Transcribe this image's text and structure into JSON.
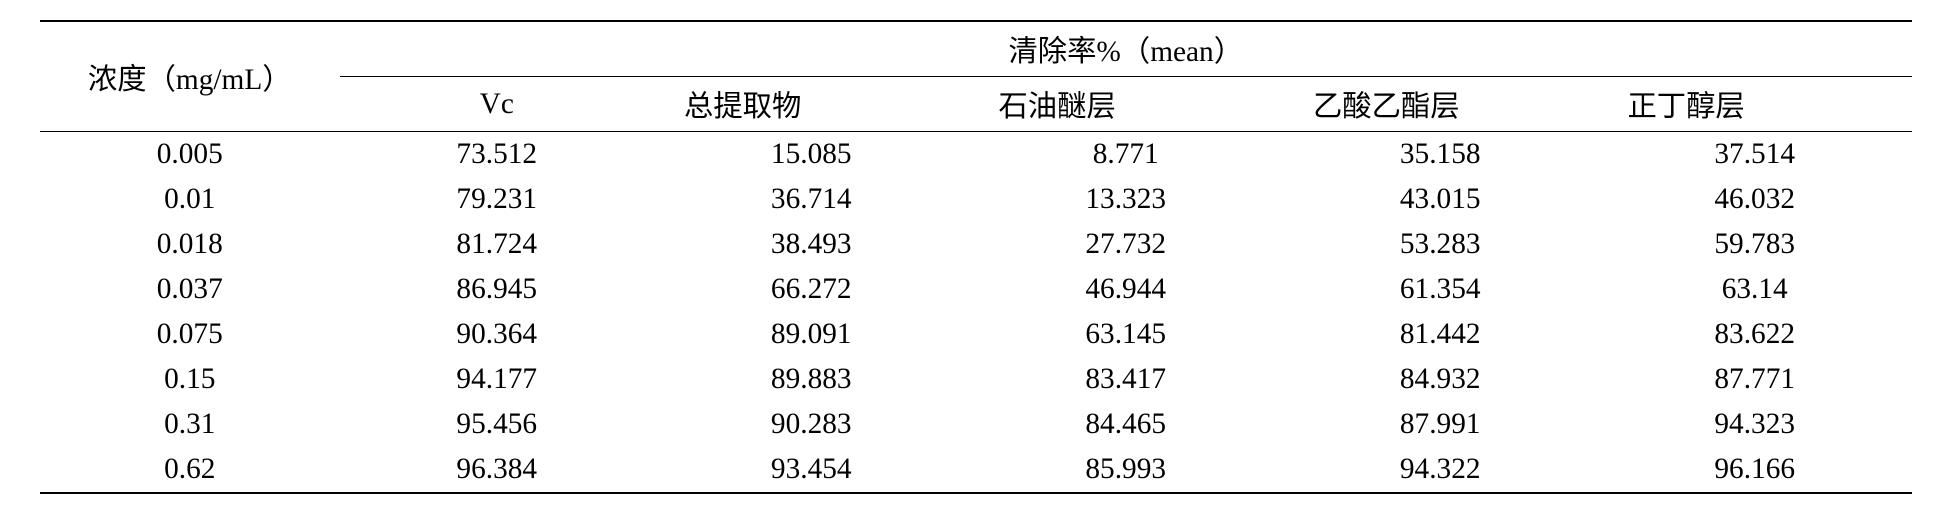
{
  "table": {
    "font_size_pt": 22,
    "text_color": "#000000",
    "background_color": "#ffffff",
    "border_color": "#000000",
    "header": {
      "row_label": "浓度（mg/mL）",
      "group_label": "清除率%（mean）",
      "sub_columns": [
        "Vc",
        "总提取物",
        "石油醚层",
        "乙酸乙酯层",
        "正丁醇层"
      ]
    },
    "rows": [
      [
        "0.005",
        "73.512",
        "15.085",
        "8.771",
        "35.158",
        "37.514"
      ],
      [
        "0.01",
        "79.231",
        "36.714",
        "13.323",
        "43.015",
        "46.032"
      ],
      [
        "0.018",
        "81.724",
        "38.493",
        "27.732",
        "53.283",
        "59.783"
      ],
      [
        "0.037",
        "86.945",
        "66.272",
        "46.944",
        "61.354",
        "63.14"
      ],
      [
        "0.075",
        "90.364",
        "89.091",
        "63.145",
        "81.442",
        "83.622"
      ],
      [
        "0.15",
        "94.177",
        "89.883",
        "83.417",
        "84.932",
        "87.771"
      ],
      [
        "0.31",
        "95.456",
        "90.283",
        "84.465",
        "87.991",
        "94.323"
      ],
      [
        "0.62",
        "96.384",
        "93.454",
        "85.993",
        "94.322",
        "96.166"
      ]
    ]
  }
}
